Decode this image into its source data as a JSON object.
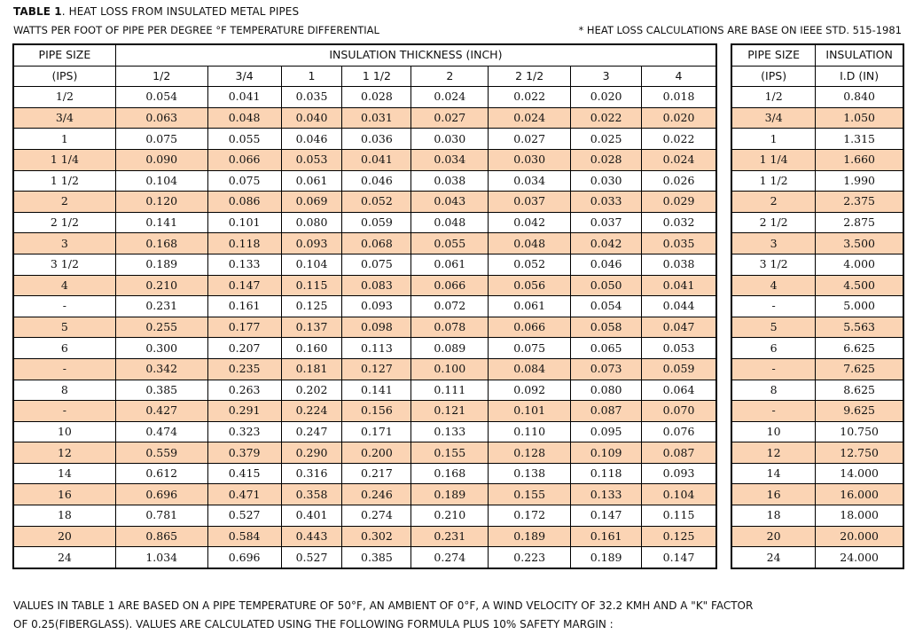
{
  "title_bold": "TABLE 1",
  "title_rest": ". HEAT LOSS FROM INSULATED METAL PIPES",
  "subtitle": "WATTS PER FOOT OF PIPE PER DEGREE °F TEMPERATURE DIFFERENTIAL",
  "note": "* HEAT LOSS CALCULATIONS ARE BASE ON IEEE STD. 515-1981",
  "main_table": {
    "pipe_size_label": "PIPE SIZE",
    "ips_label": "(IPS)",
    "insulation_thickness_label": "INSULATION THICKNESS (INCH)",
    "thickness_columns": [
      "1/2",
      "3/4",
      "1",
      "1 1/2",
      "2",
      "2 1/2",
      "3",
      "4"
    ],
    "rows": [
      [
        "1/2",
        "0.054",
        "0.041",
        "0.035",
        "0.028",
        "0.024",
        "0.022",
        "0.020",
        "0.018"
      ],
      [
        "3/4",
        "0.063",
        "0.048",
        "0.040",
        "0.031",
        "0.027",
        "0.024",
        "0.022",
        "0.020"
      ],
      [
        "1",
        "0.075",
        "0.055",
        "0.046",
        "0.036",
        "0.030",
        "0.027",
        "0.025",
        "0.022"
      ],
      [
        "1 1/4",
        "0.090",
        "0.066",
        "0.053",
        "0.041",
        "0.034",
        "0.030",
        "0.028",
        "0.024"
      ],
      [
        "1 1/2",
        "0.104",
        "0.075",
        "0.061",
        "0.046",
        "0.038",
        "0.034",
        "0.030",
        "0.026"
      ],
      [
        "2",
        "0.120",
        "0.086",
        "0.069",
        "0.052",
        "0.043",
        "0.037",
        "0.033",
        "0.029"
      ],
      [
        "2 1/2",
        "0.141",
        "0.101",
        "0.080",
        "0.059",
        "0.048",
        "0.042",
        "0.037",
        "0.032"
      ],
      [
        "3",
        "0.168",
        "0.118",
        "0.093",
        "0.068",
        "0.055",
        "0.048",
        "0.042",
        "0.035"
      ],
      [
        "3 1/2",
        "0.189",
        "0.133",
        "0.104",
        "0.075",
        "0.061",
        "0.052",
        "0.046",
        "0.038"
      ],
      [
        "4",
        "0.210",
        "0.147",
        "0.115",
        "0.083",
        "0.066",
        "0.056",
        "0.050",
        "0.041"
      ],
      [
        "-",
        "0.231",
        "0.161",
        "0.125",
        "0.093",
        "0.072",
        "0.061",
        "0.054",
        "0.044"
      ],
      [
        "5",
        "0.255",
        "0.177",
        "0.137",
        "0.098",
        "0.078",
        "0.066",
        "0.058",
        "0.047"
      ],
      [
        "6",
        "0.300",
        "0.207",
        "0.160",
        "0.113",
        "0.089",
        "0.075",
        "0.065",
        "0.053"
      ],
      [
        "-",
        "0.342",
        "0.235",
        "0.181",
        "0.127",
        "0.100",
        "0.084",
        "0.073",
        "0.059"
      ],
      [
        "8",
        "0.385",
        "0.263",
        "0.202",
        "0.141",
        "0.111",
        "0.092",
        "0.080",
        "0.064"
      ],
      [
        "-",
        "0.427",
        "0.291",
        "0.224",
        "0.156",
        "0.121",
        "0.101",
        "0.087",
        "0.070"
      ],
      [
        "10",
        "0.474",
        "0.323",
        "0.247",
        "0.171",
        "0.133",
        "0.110",
        "0.095",
        "0.076"
      ],
      [
        "12",
        "0.559",
        "0.379",
        "0.290",
        "0.200",
        "0.155",
        "0.128",
        "0.109",
        "0.087"
      ],
      [
        "14",
        "0.612",
        "0.415",
        "0.316",
        "0.217",
        "0.168",
        "0.138",
        "0.118",
        "0.093"
      ],
      [
        "16",
        "0.696",
        "0.471",
        "0.358",
        "0.246",
        "0.189",
        "0.155",
        "0.133",
        "0.104"
      ],
      [
        "18",
        "0.781",
        "0.527",
        "0.401",
        "0.274",
        "0.210",
        "0.172",
        "0.147",
        "0.115"
      ],
      [
        "20",
        "0.865",
        "0.584",
        "0.443",
        "0.302",
        "0.231",
        "0.189",
        "0.161",
        "0.125"
      ],
      [
        "24",
        "1.034",
        "0.696",
        "0.527",
        "0.385",
        "0.274",
        "0.223",
        "0.189",
        "0.147"
      ]
    ]
  },
  "side_table": {
    "pipe_size_label": "PIPE SIZE",
    "ips_label": "(IPS)",
    "insulation_label": "INSULATION",
    "id_label": "I.D (IN)",
    "rows": [
      [
        "1/2",
        "0.840"
      ],
      [
        "3/4",
        "1.050"
      ],
      [
        "1",
        "1.315"
      ],
      [
        "1 1/4",
        "1.660"
      ],
      [
        "1 1/2",
        "1.990"
      ],
      [
        "2",
        "2.375"
      ],
      [
        "2 1/2",
        "2.875"
      ],
      [
        "3",
        "3.500"
      ],
      [
        "3 1/2",
        "4.000"
      ],
      [
        "4",
        "4.500"
      ],
      [
        "-",
        "5.000"
      ],
      [
        "5",
        "5.563"
      ],
      [
        "6",
        "6.625"
      ],
      [
        "-",
        "7.625"
      ],
      [
        "8",
        "8.625"
      ],
      [
        "-",
        "9.625"
      ],
      [
        "10",
        "10.750"
      ],
      [
        "12",
        "12.750"
      ],
      [
        "14",
        "14.000"
      ],
      [
        "16",
        "16.000"
      ],
      [
        "18",
        "18.000"
      ],
      [
        "20",
        "20.000"
      ],
      [
        "24",
        "24.000"
      ]
    ]
  },
  "footer_line1": "VALUES IN TABLE 1 ARE BASED ON A PIPE TEMPERATURE OF 50°F, AN AMBIENT OF 0°F, A WIND VELOCITY OF 32.2 KMH AND A \"K\" FACTOR",
  "footer_line2": "OF 0.25(FIBERGLASS). VALUES ARE CALCULATED USING THE  FOLLOWING FORMULA PLUS 10% SAFETY MARGIN :",
  "colors": {
    "alt_row": "#fbd4b4",
    "border": "#000000"
  }
}
